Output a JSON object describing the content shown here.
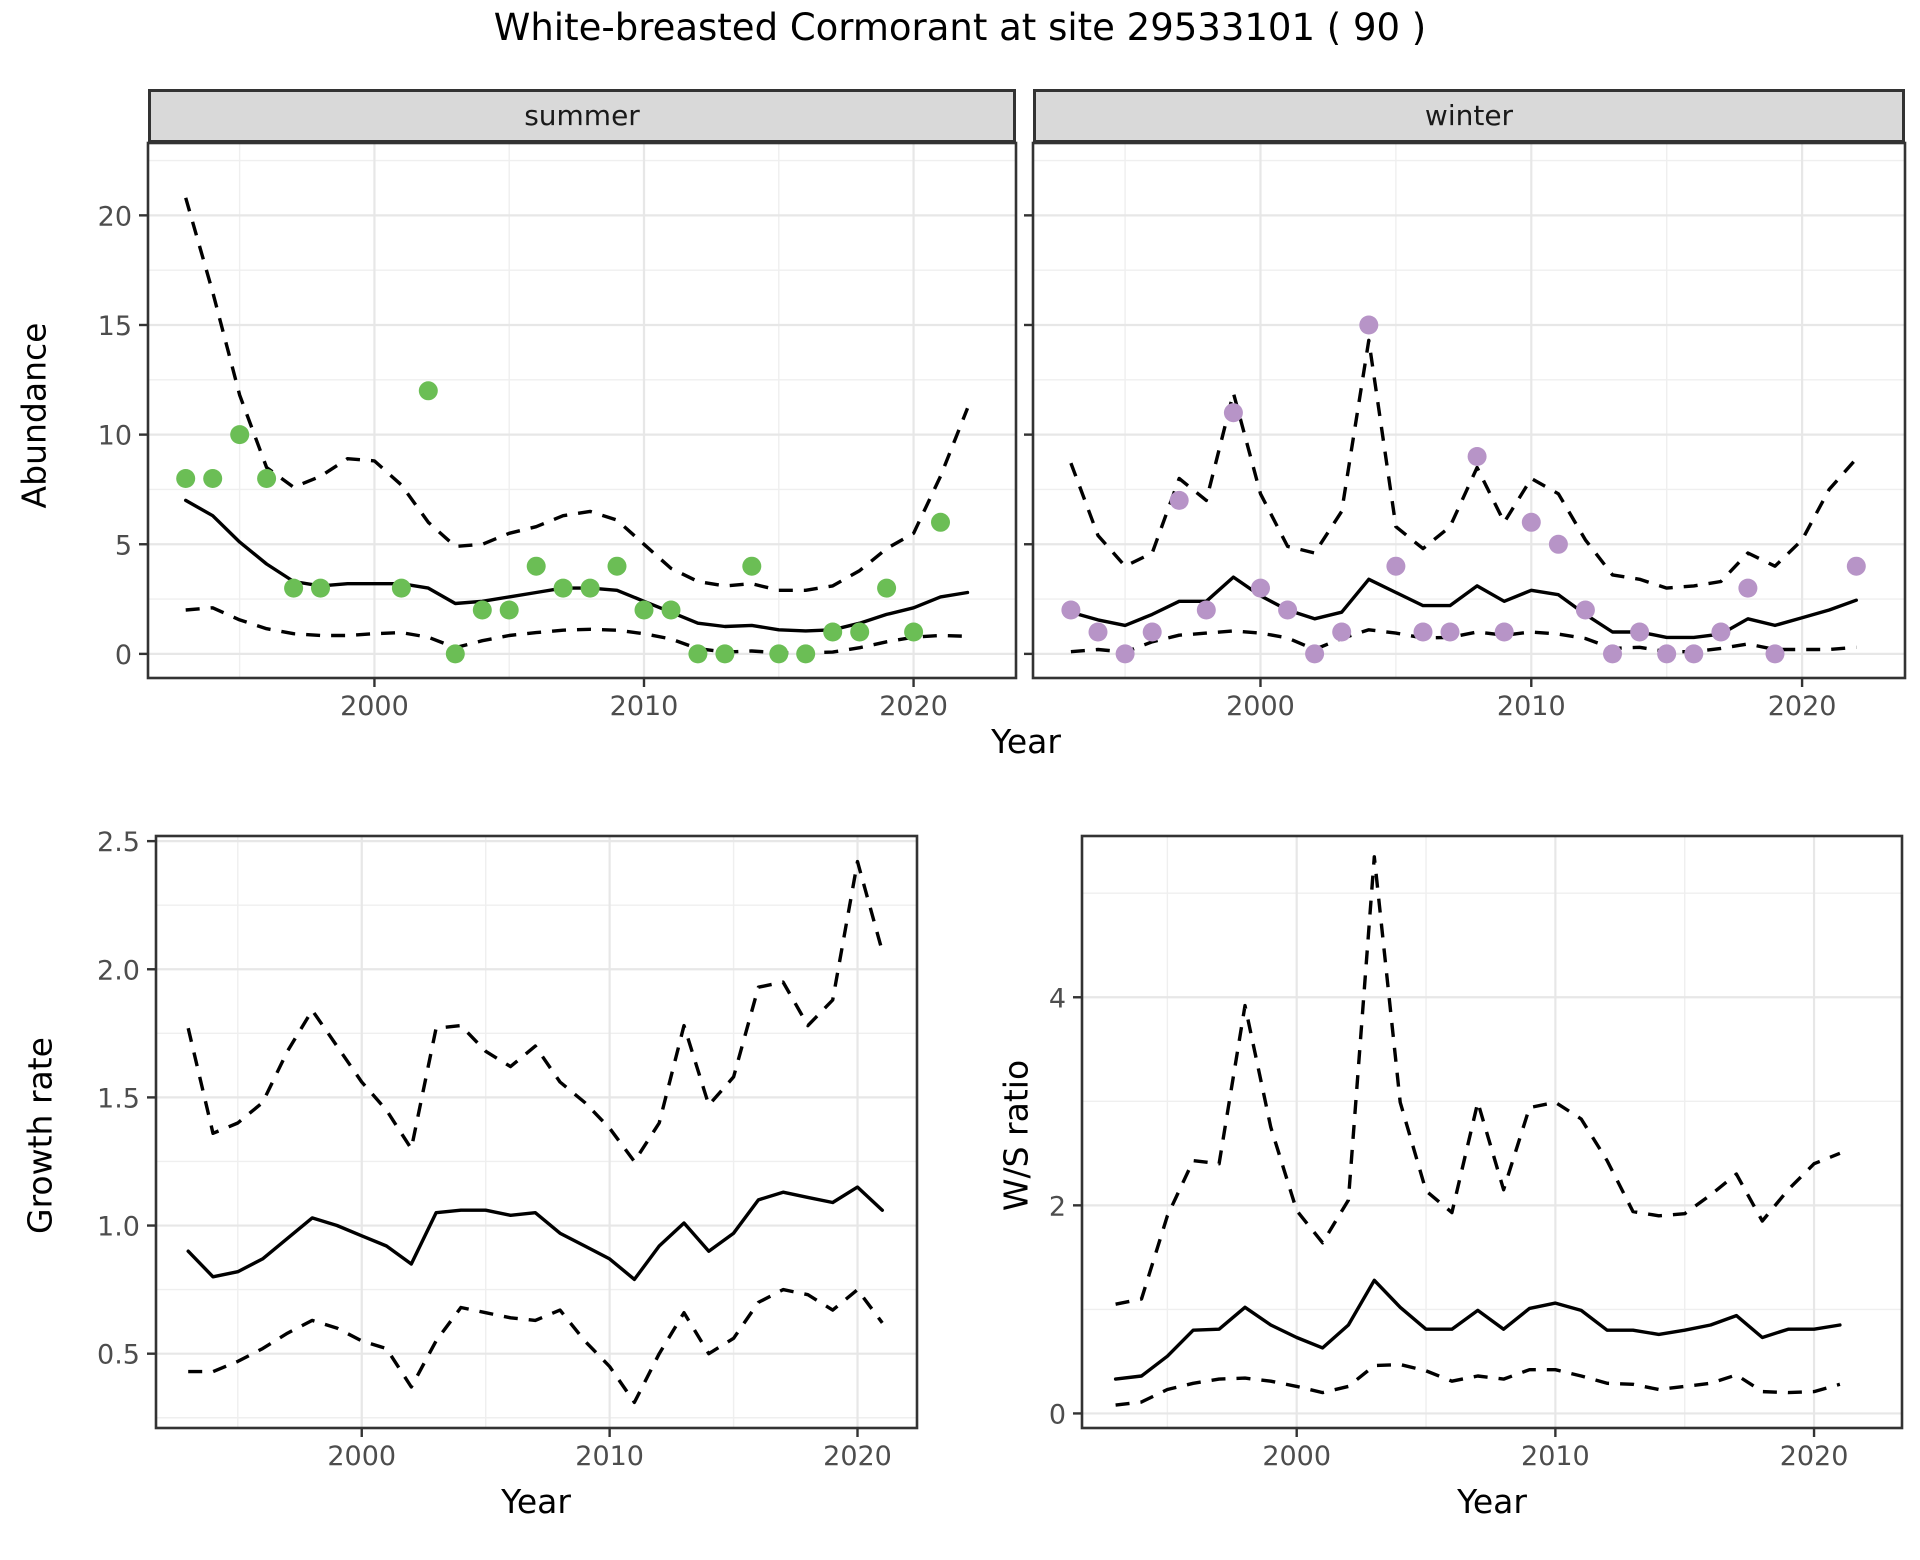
{
  "title": "White-breasted Cormorant at site 29533101 ( 90 )",
  "axes": {
    "abundance_label": "Abundance",
    "year_label": "Year",
    "growth_label": "Growth rate",
    "ws_label": "W/S ratio"
  },
  "facets": [
    {
      "label": "summer"
    },
    {
      "label": "winter"
    }
  ],
  "colors": {
    "summer_point": "#6BBE55",
    "winter_point": "#B794C7",
    "line": "#000000",
    "tick_label": "#4D4D4D",
    "grid_major": "#E7E7E7",
    "grid_minor": "#EFEFEF",
    "panel_border": "#333333",
    "strip_bg": "#D9D9D9"
  },
  "chart_data": [
    {
      "type": "line",
      "panel": "summer",
      "title": "summer",
      "xlabel": "Year",
      "ylabel": "Abundance",
      "xlim": [
        1991.6,
        2023.8
      ],
      "ylim": [
        -1.1,
        23.3
      ],
      "x_ticks": [
        2000,
        2010,
        2020
      ],
      "x_tick_labels": [
        "2000",
        "2010",
        "2020"
      ],
      "x_minor": [
        1995,
        2005,
        2015
      ],
      "y_ticks": [
        0,
        5,
        10,
        15,
        20
      ],
      "y_tick_labels": [
        "0",
        "5",
        "10",
        "15",
        "20"
      ],
      "y_minor": [
        2.5,
        7.5,
        12.5,
        17.5,
        22.5
      ],
      "show_y_tick_labels": true,
      "x": [
        1993,
        1994,
        1995,
        1996,
        1997,
        1998,
        1999,
        2000,
        2001,
        2002,
        2003,
        2004,
        2005,
        2006,
        2007,
        2008,
        2009,
        2010,
        2011,
        2012,
        2013,
        2014,
        2015,
        2016,
        2017,
        2018,
        2019,
        2020,
        2021,
        2022
      ],
      "series": [
        {
          "name": "median",
          "style": "solid",
          "values": [
            7.0,
            6.3,
            5.1,
            4.1,
            3.3,
            3.1,
            3.2,
            3.2,
            3.2,
            3.0,
            2.3,
            2.4,
            2.6,
            2.8,
            3.0,
            3.0,
            2.9,
            2.4,
            1.9,
            1.4,
            1.25,
            1.3,
            1.1,
            1.05,
            1.1,
            1.4,
            1.8,
            2.1,
            2.6,
            2.8
          ]
        },
        {
          "name": "upper-ci",
          "style": "dashed",
          "values": [
            20.8,
            16.5,
            11.8,
            8.5,
            7.6,
            8.1,
            8.9,
            8.8,
            7.7,
            6.0,
            4.9,
            5.0,
            5.5,
            5.8,
            6.3,
            6.5,
            6.1,
            5.0,
            3.9,
            3.3,
            3.1,
            3.2,
            2.9,
            2.9,
            3.1,
            3.8,
            4.8,
            5.5,
            8.1,
            11.2
          ]
        },
        {
          "name": "lower-ci",
          "style": "dashed",
          "values": [
            2.0,
            2.1,
            1.55,
            1.15,
            0.92,
            0.84,
            0.84,
            0.92,
            0.97,
            0.76,
            0.28,
            0.6,
            0.84,
            0.97,
            1.08,
            1.12,
            1.08,
            0.92,
            0.68,
            0.24,
            0.08,
            0.13,
            0.05,
            0.05,
            0.08,
            0.28,
            0.55,
            0.76,
            0.84,
            0.8
          ]
        }
      ],
      "points": {
        "color_key": "summer_point",
        "x": [
          1993,
          1994,
          1995,
          1996,
          1997,
          1998,
          2001,
          2002,
          2003,
          2004,
          2005,
          2006,
          2007,
          2008,
          2009,
          2010,
          2011,
          2012,
          2013,
          2014,
          2015,
          2016,
          2017,
          2018,
          2019,
          2020,
          2021
        ],
        "y": [
          8,
          8,
          10,
          8,
          3,
          3,
          3,
          12,
          0,
          2,
          2,
          4,
          3,
          3,
          4,
          2,
          2,
          0,
          0,
          4,
          0,
          0,
          1,
          1,
          3,
          1,
          6
        ]
      }
    },
    {
      "type": "line",
      "panel": "winter",
      "title": "winter",
      "xlabel": "Year",
      "ylabel": "Abundance",
      "xlim": [
        1991.6,
        2023.8
      ],
      "ylim": [
        -1.1,
        23.3
      ],
      "x_ticks": [
        2000,
        2010,
        2020
      ],
      "x_tick_labels": [
        "2000",
        "2010",
        "2020"
      ],
      "x_minor": [
        1995,
        2005,
        2015
      ],
      "y_ticks": [
        0,
        5,
        10,
        15,
        20
      ],
      "y_tick_labels": [
        "0",
        "5",
        "10",
        "15",
        "20"
      ],
      "y_minor": [
        2.5,
        7.5,
        12.5,
        17.5,
        22.5
      ],
      "show_y_tick_labels": false,
      "x": [
        1993,
        1994,
        1995,
        1996,
        1997,
        1998,
        1999,
        2000,
        2001,
        2002,
        2003,
        2004,
        2005,
        2006,
        2007,
        2008,
        2009,
        2010,
        2011,
        2012,
        2013,
        2014,
        2015,
        2016,
        2017,
        2018,
        2019,
        2020,
        2021,
        2022
      ],
      "series": [
        {
          "name": "median",
          "style": "solid",
          "values": [
            1.9,
            1.55,
            1.3,
            1.8,
            2.4,
            2.4,
            3.5,
            2.65,
            2.0,
            1.6,
            1.9,
            3.4,
            2.8,
            2.2,
            2.2,
            3.1,
            2.4,
            2.9,
            2.7,
            1.8,
            1.0,
            1.0,
            0.75,
            0.75,
            0.9,
            1.6,
            1.3,
            1.65,
            2.0,
            2.45
          ]
        },
        {
          "name": "upper-ci",
          "style": "dashed",
          "values": [
            8.7,
            5.4,
            4.0,
            4.6,
            8.0,
            7.0,
            11.9,
            7.3,
            4.9,
            4.6,
            6.5,
            14.3,
            5.8,
            4.8,
            5.8,
            8.5,
            6.0,
            8.0,
            7.3,
            5.2,
            3.6,
            3.4,
            3.0,
            3.1,
            3.3,
            4.6,
            4.0,
            5.2,
            7.5,
            8.9
          ]
        },
        {
          "name": "lower-ci",
          "style": "dashed",
          "values": [
            0.1,
            0.2,
            0.08,
            0.55,
            0.85,
            0.95,
            1.05,
            0.95,
            0.73,
            0.2,
            0.7,
            1.1,
            0.95,
            0.73,
            0.75,
            1.0,
            0.85,
            1.0,
            0.9,
            0.7,
            0.25,
            0.3,
            0.1,
            0.1,
            0.25,
            0.45,
            0.2,
            0.2,
            0.2,
            0.3
          ]
        }
      ],
      "points": {
        "color_key": "winter_point",
        "x": [
          1993,
          1994,
          1995,
          1996,
          1997,
          1998,
          1999,
          2000,
          2001,
          2002,
          2003,
          2004,
          2005,
          2006,
          2007,
          2008,
          2009,
          2010,
          2011,
          2012,
          2013,
          2014,
          2015,
          2016,
          2017,
          2018,
          2019,
          2022
        ],
        "y": [
          2,
          1,
          0,
          1,
          7,
          2,
          11,
          3,
          2,
          0,
          1,
          15,
          4,
          1,
          1,
          9,
          1,
          6,
          5,
          2,
          0,
          1,
          0,
          0,
          1,
          3,
          0,
          4
        ]
      }
    },
    {
      "type": "line",
      "panel": "growth",
      "title": "Growth rate",
      "xlabel": "Year",
      "ylabel": "Growth rate",
      "xlim": [
        1991.7,
        2022.4
      ],
      "ylim": [
        0.21,
        2.52
      ],
      "x_ticks": [
        2000,
        2010,
        2020
      ],
      "x_tick_labels": [
        "2000",
        "2010",
        "2020"
      ],
      "x_minor": [
        1995,
        2005,
        2015
      ],
      "y_ticks": [
        0.5,
        1.0,
        1.5,
        2.0,
        2.5
      ],
      "y_tick_labels": [
        "0.5",
        "1.0",
        "1.5",
        "2.0",
        "2.5"
      ],
      "y_minor": [
        0.25,
        0.75,
        1.25,
        1.75,
        2.25
      ],
      "show_y_tick_labels": true,
      "x": [
        1993,
        1994,
        1995,
        1996,
        1997,
        1998,
        1999,
        2000,
        2001,
        2002,
        2003,
        2004,
        2005,
        2006,
        2007,
        2008,
        2009,
        2010,
        2011,
        2012,
        2013,
        2014,
        2015,
        2016,
        2017,
        2018,
        2019,
        2020,
        2021
      ],
      "series": [
        {
          "name": "median",
          "style": "solid",
          "values": [
            0.9,
            0.8,
            0.82,
            0.87,
            0.95,
            1.03,
            1.0,
            0.96,
            0.92,
            0.85,
            1.05,
            1.06,
            1.06,
            1.04,
            1.05,
            0.97,
            0.92,
            0.87,
            0.79,
            0.92,
            1.01,
            0.9,
            0.97,
            1.1,
            1.13,
            1.11,
            1.09,
            1.15,
            1.06
          ]
        },
        {
          "name": "upper-ci",
          "style": "dashed",
          "values": [
            1.77,
            1.36,
            1.4,
            1.48,
            1.68,
            1.84,
            1.7,
            1.56,
            1.45,
            1.3,
            1.77,
            1.78,
            1.68,
            1.62,
            1.7,
            1.56,
            1.48,
            1.38,
            1.25,
            1.4,
            1.78,
            1.47,
            1.58,
            1.93,
            1.95,
            1.78,
            1.88,
            2.42,
            2.07
          ]
        },
        {
          "name": "lower-ci",
          "style": "dashed",
          "values": [
            0.43,
            0.43,
            0.47,
            0.52,
            0.58,
            0.63,
            0.6,
            0.55,
            0.52,
            0.37,
            0.55,
            0.68,
            0.66,
            0.64,
            0.63,
            0.67,
            0.55,
            0.45,
            0.31,
            0.5,
            0.66,
            0.5,
            0.56,
            0.7,
            0.75,
            0.73,
            0.67,
            0.75,
            0.62
          ]
        }
      ],
      "points": null
    },
    {
      "type": "line",
      "panel": "ws",
      "title": "W/S ratio",
      "xlabel": "Year",
      "ylabel": "W/S ratio",
      "xlim": [
        1991.7,
        2023.4
      ],
      "ylim": [
        -0.14,
        5.55
      ],
      "x_ticks": [
        2000,
        2010,
        2020
      ],
      "x_tick_labels": [
        "2000",
        "2010",
        "2020"
      ],
      "x_minor": [
        1995,
        2005,
        2015
      ],
      "y_ticks": [
        0,
        2,
        4
      ],
      "y_tick_labels": [
        "0",
        "2",
        "4"
      ],
      "y_minor": [
        1,
        3,
        5
      ],
      "show_y_tick_labels": true,
      "x": [
        1993,
        1994,
        1995,
        1996,
        1997,
        1998,
        1999,
        2000,
        2001,
        2002,
        2003,
        2004,
        2005,
        2006,
        2007,
        2008,
        2009,
        2010,
        2011,
        2012,
        2013,
        2014,
        2015,
        2016,
        2017,
        2018,
        2019,
        2020,
        2021
      ],
      "series": [
        {
          "name": "median",
          "style": "solid",
          "values": [
            0.33,
            0.36,
            0.55,
            0.8,
            0.81,
            1.02,
            0.85,
            0.73,
            0.63,
            0.85,
            1.28,
            1.02,
            0.81,
            0.81,
            0.99,
            0.81,
            1.01,
            1.06,
            0.99,
            0.8,
            0.8,
            0.76,
            0.8,
            0.85,
            0.94,
            0.73,
            0.81,
            0.81,
            0.85
          ]
        },
        {
          "name": "upper-ci",
          "style": "dashed",
          "values": [
            1.05,
            1.1,
            1.9,
            2.43,
            2.4,
            3.92,
            2.75,
            1.95,
            1.64,
            2.05,
            5.35,
            2.99,
            2.14,
            1.93,
            2.99,
            2.15,
            2.94,
            2.99,
            2.83,
            2.43,
            1.94,
            1.9,
            1.92,
            2.1,
            2.3,
            1.85,
            2.15,
            2.4,
            2.5
          ]
        },
        {
          "name": "lower-ci",
          "style": "dashed",
          "values": [
            0.08,
            0.11,
            0.23,
            0.29,
            0.33,
            0.34,
            0.31,
            0.26,
            0.2,
            0.26,
            0.46,
            0.47,
            0.41,
            0.31,
            0.36,
            0.33,
            0.42,
            0.42,
            0.36,
            0.29,
            0.28,
            0.23,
            0.26,
            0.29,
            0.37,
            0.21,
            0.2,
            0.21,
            0.28
          ]
        }
      ],
      "points": null
    }
  ]
}
